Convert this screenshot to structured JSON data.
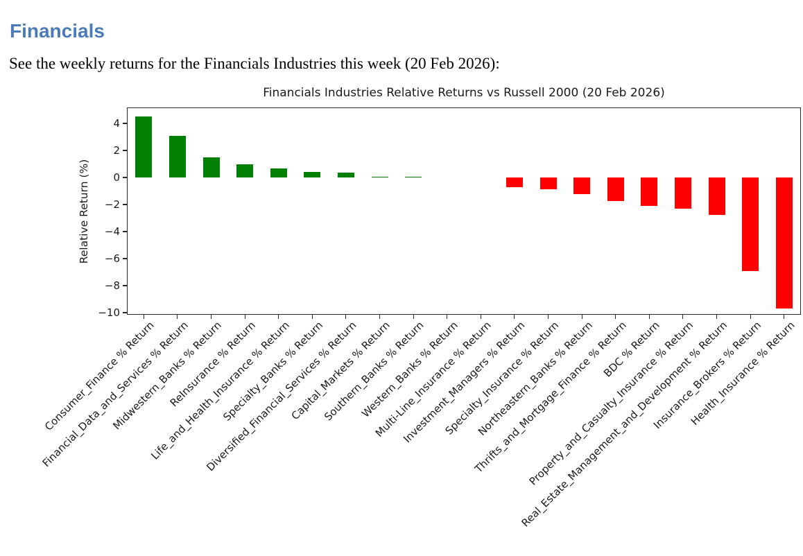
{
  "page": {
    "heading": "Financials",
    "intro": "See the weekly returns for the Financials Industries this week (20 Feb 2026):"
  },
  "colors": {
    "heading": "#4a7cba",
    "positive_bar": "#008000",
    "negative_bar": "#ff0000",
    "axis": "#262626",
    "chart_text": "#1a1a1a"
  },
  "chart_data": {
    "type": "bar",
    "title": "Financials Industries Relative Returns vs Russell 2000 (20 Feb 2026)",
    "xlabel": "",
    "ylabel": "Relative Return (%)",
    "ylim": [
      -10.15,
      5.18
    ],
    "grid": false,
    "legend": false,
    "bar_color_rule": "green if value >= 0 else red",
    "yticks": [
      {
        "value": 4,
        "label": "4"
      },
      {
        "value": 2,
        "label": "2"
      },
      {
        "value": 0,
        "label": "0"
      },
      {
        "value": -2,
        "label": "−2"
      },
      {
        "value": -4,
        "label": "−4"
      },
      {
        "value": -6,
        "label": "−6"
      },
      {
        "value": -8,
        "label": "−8"
      },
      {
        "value": -10,
        "label": "−10"
      }
    ],
    "categories": [
      "Consumer_Finance % Return",
      "Financial_Data_and_Services % Return",
      "Midwestern_Banks % Return",
      "ReInsurance % Return",
      "Life_and_Health_Insurance % Return",
      "Specialty_Banks % Return",
      "Diversified_Financial_Services % Return",
      "Capital_Markets % Return",
      "Southern_Banks % Return",
      "Western_Banks % Return",
      "Multi-Line_Insurance % Return",
      "Investment_Managers % Return",
      "Specialty_Insurance % Return",
      "Northeastern_Banks % Return",
      "Thrifts_and_Mortgage_Finance % Return",
      "BDC % Return",
      "Property_and_Casualty_Insurance % Return",
      "Real_Estate_Management_and_Development % Return",
      "Insurance_Brokers % Return",
      "Health_Insurance % Return"
    ],
    "values": [
      4.5,
      3.1,
      1.5,
      1.0,
      0.65,
      0.4,
      0.35,
      0.05,
      0.05,
      0.0,
      0.0,
      -0.7,
      -0.85,
      -1.25,
      -1.75,
      -2.1,
      -2.3,
      -2.75,
      -6.9,
      -9.7
    ]
  }
}
